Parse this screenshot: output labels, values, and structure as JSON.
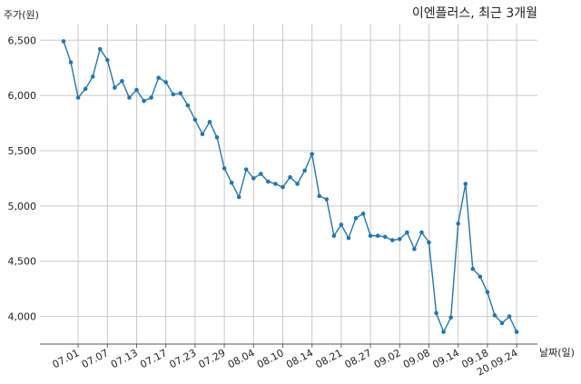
{
  "chart_data": {
    "type": "line",
    "title": "이엔플러스, 최근 3개월",
    "ylabel": "주가(원)",
    "xlabel": "날짜(일)",
    "ylim": [
      3750,
      6650
    ],
    "yticks": [
      4000,
      4500,
      5000,
      5500,
      6000,
      6500
    ],
    "ytick_labels": [
      "4,000",
      "4,500",
      "5,000",
      "5,500",
      "6,000",
      "6,500"
    ],
    "xtick_labels": [
      "07.01",
      "07.07",
      "07.13",
      "07.17",
      "07.23",
      "07.29",
      "08.04",
      "08.10",
      "08.14",
      "08.21",
      "08.27",
      "09.02",
      "09.08",
      "09.14",
      "09.18",
      "20.09.24"
    ],
    "xtick_index": [
      2,
      6,
      10,
      14,
      18,
      22,
      26,
      30,
      34,
      38,
      42,
      46,
      50,
      54,
      58,
      62
    ],
    "grid": true,
    "color": "#1f77b4",
    "values": [
      6490,
      6300,
      5980,
      6060,
      6170,
      6420,
      6320,
      6070,
      6130,
      5980,
      6050,
      5950,
      5980,
      6160,
      6120,
      6010,
      6020,
      5910,
      5780,
      5650,
      5760,
      5620,
      5340,
      5210,
      5080,
      5330,
      5250,
      5290,
      5220,
      5200,
      5170,
      5260,
      5200,
      5320,
      5470,
      5090,
      5060,
      4730,
      4830,
      4710,
      4890,
      4930,
      4730,
      4730,
      4720,
      4690,
      4700,
      4760,
      4610,
      4760,
      4670,
      4030,
      3860,
      3990,
      4840,
      5200,
      4430,
      4360,
      4220,
      4010,
      3940,
      4000,
      3860
    ]
  }
}
